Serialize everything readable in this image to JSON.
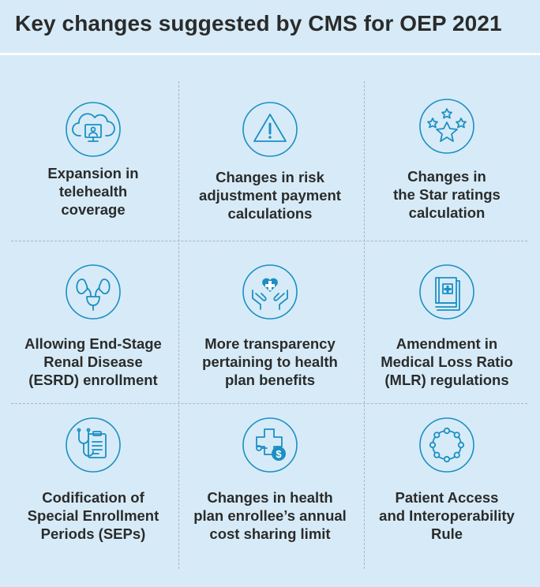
{
  "title": "Key changes suggested by CMS for OEP 2021",
  "colors": {
    "background": "#d6ebf7",
    "accent": "#1d8fc4",
    "text": "#2b2b2b",
    "divider": "#a8b6c0"
  },
  "items": [
    {
      "icon": "cloud-telehealth-icon",
      "line1": "Expansion in",
      "line2": "telehealth",
      "line3": "coverage"
    },
    {
      "icon": "warning-triangle-icon",
      "line1": "Changes in risk",
      "line2": "adjustment payment",
      "line3": "calculations"
    },
    {
      "icon": "stars-icon",
      "line1": "Changes in",
      "line2": "the Star ratings",
      "line3": "calculation"
    },
    {
      "icon": "kidney-icon",
      "line1": "Allowing End-Stage",
      "line2": "Renal Disease",
      "line3": "(ESRD) enrollment"
    },
    {
      "icon": "hands-heart-icon",
      "line1": "More transparency",
      "line2": "pertaining to health",
      "line3": "plan benefits"
    },
    {
      "icon": "medical-book-icon",
      "line1": "Amendment in",
      "line2": "Medical Loss Ratio",
      "line3": "(MLR) regulations"
    },
    {
      "icon": "stethoscope-clipboard-icon",
      "line1": "Codification of",
      "line2": "Special Enrollment",
      "line3": "Periods (SEPs)"
    },
    {
      "icon": "medical-cost-icon",
      "line1": "Changes in health",
      "line2": "plan enrollee’s annual",
      "line3": "cost sharing limit"
    },
    {
      "icon": "interoperability-ring-icon",
      "line1": "Patient Access",
      "line2": "and Interoperability",
      "line3": "Rule"
    }
  ]
}
